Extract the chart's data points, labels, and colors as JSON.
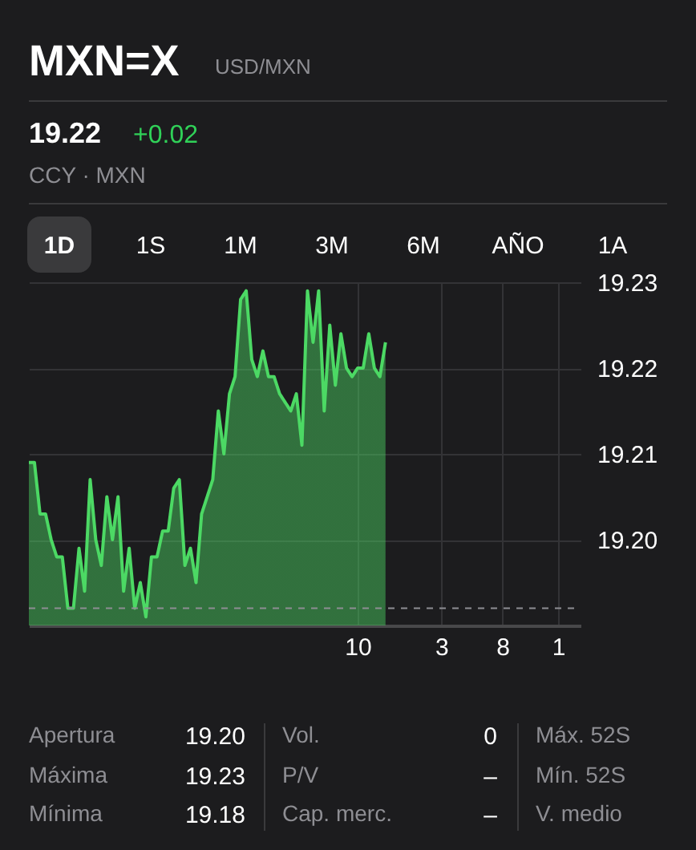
{
  "chart_data": {
    "type": "area",
    "title": "MXN=X",
    "subtitle": "USD/MXN",
    "categories": [
      null,
      null,
      null,
      null,
      null,
      null,
      null,
      null,
      null,
      null,
      null,
      null,
      null,
      null,
      null,
      null,
      null,
      null,
      null,
      null,
      null,
      null,
      null,
      null,
      null,
      null,
      null,
      null,
      null,
      null,
      null,
      null,
      null,
      null,
      null,
      null,
      null,
      null,
      null,
      null,
      null,
      null,
      null,
      null,
      null,
      null,
      null,
      null,
      null,
      null,
      null,
      null,
      null,
      null,
      null,
      null,
      null,
      null,
      null,
      "10",
      null,
      null,
      null,
      null,
      null,
      null,
      null,
      null,
      null,
      null,
      null,
      null,
      null,
      null,
      "3",
      null,
      null,
      null,
      null,
      null,
      null,
      null,
      null,
      null,
      null,
      "8",
      null,
      null,
      null,
      null,
      null,
      null,
      null,
      null,
      null,
      "1",
      null,
      null,
      null,
      null
    ],
    "series": [
      {
        "color": "#4cd964",
        "values": [
          19.209,
          19.209,
          19.203,
          19.203,
          19.2,
          19.198,
          19.198,
          19.192,
          19.192,
          19.199,
          19.194,
          19.207,
          19.2,
          19.197,
          19.205,
          19.2,
          19.205,
          19.194,
          19.199,
          19.192,
          19.195,
          19.191,
          19.198,
          19.198,
          19.201,
          19.201,
          19.206,
          19.207,
          19.197,
          19.199,
          19.195,
          19.203,
          19.205,
          19.207,
          19.215,
          19.21,
          19.217,
          19.219,
          19.228,
          19.229,
          19.221,
          19.219,
          19.222,
          19.219,
          19.219,
          19.217,
          19.216,
          19.215,
          19.217,
          19.211,
          19.229,
          19.223,
          19.229,
          19.215,
          19.225,
          19.218,
          19.224,
          19.22,
          19.219,
          19.22,
          19.22,
          19.224,
          19.22,
          19.219,
          19.223,
          null,
          null,
          null,
          null,
          null,
          null,
          null,
          null,
          null,
          null,
          null,
          null,
          null,
          null,
          null,
          null,
          null,
          null,
          null,
          null,
          null,
          null,
          null,
          null,
          null,
          null,
          null,
          null,
          null,
          null,
          null,
          null,
          null,
          null,
          null
        ]
      }
    ],
    "ylim": [
      19.19,
      19.23
    ],
    "yticks": [
      {
        "value": 19.2,
        "label": "19.20"
      },
      {
        "value": 19.21,
        "label": "19.21"
      },
      {
        "value": 19.22,
        "label": "19.22"
      },
      {
        "value": 19.23,
        "label": "19.23"
      }
    ],
    "grid": true,
    "ref_lines": [
      {
        "axis": "y",
        "value": 19.192,
        "line_style": "dashed",
        "color": "#8e8e93"
      }
    ],
    "annotations": [
      "19.22",
      "+0.02",
      "CCY · MXN",
      "1D",
      "1S",
      "1M",
      "3M",
      "6M",
      "AÑO",
      "1A",
      "Apertura",
      "19.20",
      "Vol.",
      "0",
      "Máx. 52S",
      "Máxima",
      "19.23",
      "P/V",
      "–",
      "Mín. 52S",
      "Mínima",
      "19.18",
      "Cap. merc.",
      "–",
      "V. medio"
    ]
  }
}
